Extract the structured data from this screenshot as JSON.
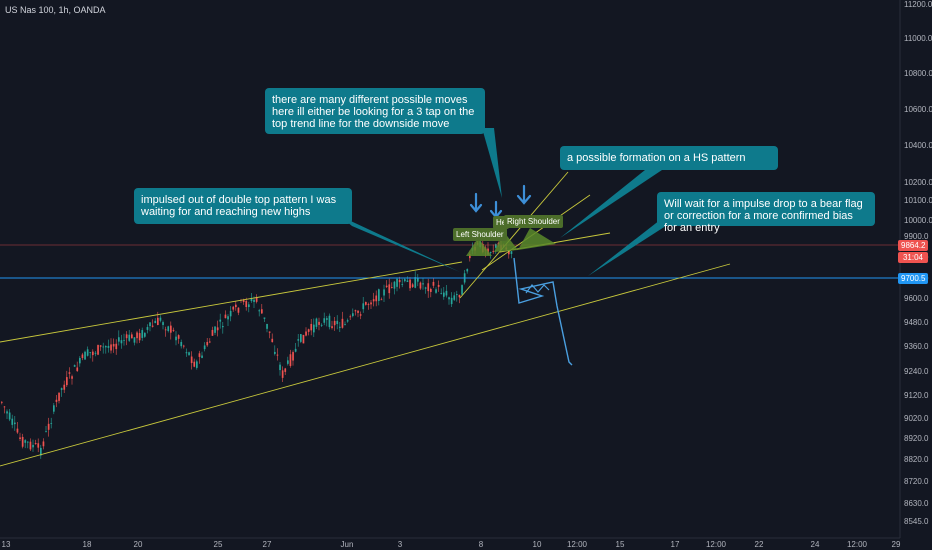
{
  "symbol": "US Nas 100, 1h, OANDA",
  "chart_data": {
    "type": "candlestick",
    "x_ticks": [
      "13",
      "18",
      "20",
      "25",
      "27",
      "Jun",
      "3",
      "8",
      "10",
      "12:00",
      "15",
      "17",
      "12:00",
      "22",
      "24",
      "12:00",
      "29"
    ],
    "y_ticks": [
      "11200.0",
      "11000.0",
      "10800.0",
      "10600.0",
      "10400.0",
      "10200.0",
      "10100.0",
      "10000.0",
      "9900.0",
      "9800.0",
      "9700.0",
      "9600.0",
      "9480.0",
      "9360.0",
      "9240.0",
      "9120.0",
      "9020.0",
      "8920.0",
      "8820.0",
      "8720.0",
      "8630.0",
      "8545.0"
    ],
    "current_price": "9864.2",
    "countdown": "31:04",
    "level_price": "9700.5",
    "annotations": {
      "callout_1": "there are many different possible moves here ill either be looking for a 3 tap on the top trend line for the downside move",
      "callout_2": "a possible formation on a HS pattern",
      "callout_3": "impulsed out of double top pattern I was waiting for and reaching new highs",
      "callout_4": "Will wait for a impulse drop to a bear flag or correction for a more confirmed bias for an entry",
      "left_shoulder": "Left Shoulder",
      "head": "He",
      "right_shoulder": "Right Shoulder"
    }
  },
  "colors": {
    "background": "#131722",
    "callout": "#0e7a8c",
    "up_candle": "#26a69a",
    "down_candle": "#ef5350",
    "trendline": "#c8c83c",
    "hs_fill": "#5a8a2a",
    "blue_level": "#2196f3",
    "red_level": "#ef5350"
  }
}
